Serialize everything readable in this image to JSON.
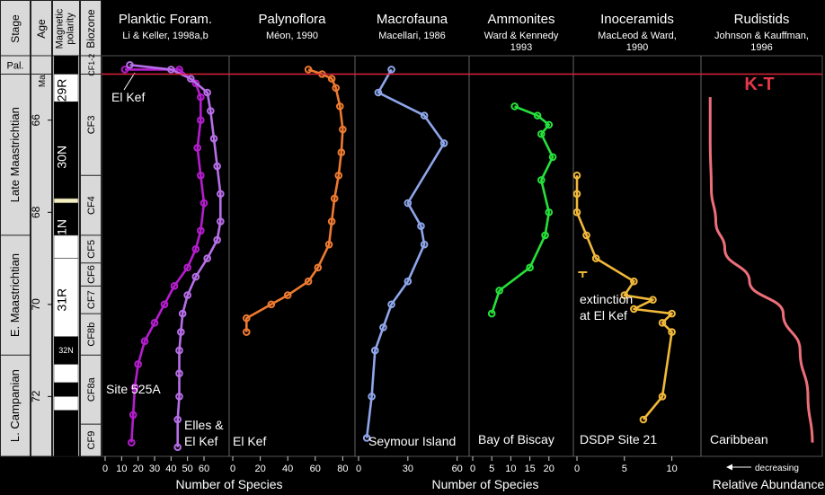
{
  "chart_data": {
    "type": "line",
    "y_axis": {
      "label": "Ma",
      "ticks": [
        66,
        68,
        70,
        72
      ],
      "range": [
        64.6,
        73.3
      ],
      "kt_boundary": 65.0
    },
    "left_columns": {
      "headers": {
        "stage": "Stage",
        "age": "Age",
        "polarity": "Magnetic polarity",
        "biozone": "Biozone"
      },
      "stages": [
        {
          "label": "Pal.",
          "from": 64.6,
          "to": 65.0
        },
        {
          "label": "Late Maastrichtian",
          "from": 65.0,
          "to": 68.5
        },
        {
          "label": "E. Maastrichtian",
          "from": 68.5,
          "to": 71.1
        },
        {
          "label": "L. Campanian",
          "from": 71.1,
          "to": 73.3
        }
      ],
      "polarity_labels": [
        {
          "label": "29R",
          "at": 65.35
        },
        {
          "label": "30N",
          "at": 66.8
        },
        {
          "label": "31N",
          "at": 68.4
        },
        {
          "label": "31R",
          "at": 69.9
        },
        {
          "label": "32N",
          "at": 71.0
        }
      ],
      "polarity_segments": [
        {
          "from": 64.6,
          "to": 65.0,
          "color": "#000000"
        },
        {
          "from": 65.0,
          "to": 65.6,
          "color": "#ffffff"
        },
        {
          "from": 65.6,
          "to": 67.7,
          "color": "#000000"
        },
        {
          "from": 67.7,
          "to": 67.8,
          "color": "#f3efc0"
        },
        {
          "from": 67.8,
          "to": 68.5,
          "color": "#000000"
        },
        {
          "from": 68.5,
          "to": 69.0,
          "color": "#ffffff"
        },
        {
          "from": 69.0,
          "to": 70.7,
          "color": "#ffffff"
        },
        {
          "from": 70.7,
          "to": 71.3,
          "color": "#000000"
        },
        {
          "from": 71.3,
          "to": 71.7,
          "color": "#ffffff"
        },
        {
          "from": 71.7,
          "to": 72.0,
          "color": "#000000"
        },
        {
          "from": 72.0,
          "to": 72.3,
          "color": "#ffffff"
        },
        {
          "from": 72.3,
          "to": 73.3,
          "color": "#000000"
        }
      ],
      "biozones": [
        {
          "label": "CF1-2",
          "from": 64.6,
          "to": 65.0
        },
        {
          "label": "CF3",
          "from": 65.0,
          "to": 67.2
        },
        {
          "label": "CF4",
          "from": 67.2,
          "to": 68.5
        },
        {
          "label": "CF5",
          "from": 68.5,
          "to": 69.1
        },
        {
          "label": "CF6",
          "from": 69.1,
          "to": 69.6
        },
        {
          "label": "CF7",
          "from": 69.6,
          "to": 70.2
        },
        {
          "label": "CF8b",
          "from": 70.2,
          "to": 71.1
        },
        {
          "label": "CF8a",
          "from": 71.1,
          "to": 72.6
        },
        {
          "label": "CF9",
          "from": 72.6,
          "to": 73.3
        }
      ]
    },
    "panels": [
      {
        "id": "planktic",
        "title": "Planktic Foram.",
        "source": "Li & Keller, 1998a,b",
        "axis_ticks": [
          0,
          10,
          20,
          30,
          40,
          50,
          60
        ],
        "x_range": [
          0,
          72
        ],
        "site_labels": [
          "El Kef",
          "Site 525A",
          "Elles &",
          "El Kef"
        ],
        "series": [
          {
            "name": "Site 525A",
            "color": "#b51dce",
            "points": [
              [
                12,
                64.9
              ],
              [
                45,
                64.9
              ],
              [
                55,
                65.2
              ],
              [
                58,
                65.5
              ],
              [
                58,
                66.0
              ],
              [
                56,
                66.6
              ],
              [
                58,
                67.2
              ],
              [
                60,
                67.8
              ],
              [
                58,
                68.4
              ],
              [
                55,
                68.8
              ],
              [
                50,
                69.2
              ],
              [
                42,
                69.6
              ],
              [
                36,
                70.0
              ],
              [
                30,
                70.4
              ],
              [
                24,
                70.8
              ],
              [
                20,
                71.3
              ],
              [
                18,
                71.8
              ],
              [
                17,
                72.4
              ],
              [
                16,
                73.0
              ]
            ]
          },
          {
            "name": "Elles & El Kef",
            "color": "#b86ee8",
            "points": [
              [
                15,
                64.8
              ],
              [
                40,
                64.9
              ],
              [
                52,
                65.1
              ],
              [
                62,
                65.4
              ],
              [
                64,
                65.8
              ],
              [
                66,
                66.4
              ],
              [
                68,
                67.0
              ],
              [
                70,
                67.6
              ],
              [
                70,
                68.2
              ],
              [
                68,
                68.6
              ],
              [
                62,
                69.0
              ],
              [
                55,
                69.4
              ],
              [
                50,
                69.8
              ],
              [
                47,
                70.2
              ],
              [
                46,
                70.6
              ],
              [
                45,
                71.0
              ],
              [
                45,
                71.5
              ],
              [
                45,
                72.0
              ],
              [
                44,
                72.5
              ],
              [
                44,
                73.1
              ]
            ]
          }
        ]
      },
      {
        "id": "palyno",
        "title": "Palynoflora",
        "source": "Méon, 1990",
        "axis_ticks": [
          0,
          20,
          40,
          60,
          80
        ],
        "x_range": [
          0,
          85
        ],
        "site_labels": [
          "El Kef"
        ],
        "series": [
          {
            "name": "El Kef",
            "color": "#ee7a30",
            "points": [
              [
                55,
                64.9
              ],
              [
                65,
                65.0
              ],
              [
                72,
                65.1
              ],
              [
                75,
                65.3
              ],
              [
                78,
                65.7
              ],
              [
                80,
                66.2
              ],
              [
                79,
                66.7
              ],
              [
                77,
                67.2
              ],
              [
                74,
                67.7
              ],
              [
                72,
                68.2
              ],
              [
                70,
                68.7
              ],
              [
                62,
                69.2
              ],
              [
                55,
                69.5
              ],
              [
                40,
                69.8
              ],
              [
                28,
                70.0
              ],
              [
                10,
                70.3
              ],
              [
                10,
                70.6
              ]
            ]
          }
        ]
      },
      {
        "id": "macro",
        "title": "Macrofauna",
        "source": "Macellari, 1986",
        "axis_ticks": [
          0,
          30,
          60
        ],
        "x_range": [
          0,
          64
        ],
        "site_labels": [
          "Seymour Island"
        ],
        "series": [
          {
            "name": "Seymour Island",
            "color": "#8ea6ea",
            "points": [
              [
                20,
                64.9
              ],
              [
                12,
                65.4
              ],
              [
                40,
                65.9
              ],
              [
                52,
                66.5
              ],
              [
                30,
                67.8
              ],
              [
                38,
                68.3
              ],
              [
                40,
                68.7
              ],
              [
                30,
                69.5
              ],
              [
                20,
                70.0
              ],
              [
                15,
                70.5
              ],
              [
                10,
                71.0
              ],
              [
                8,
                72.0
              ],
              [
                5,
                72.9
              ]
            ]
          }
        ]
      },
      {
        "id": "ammonites",
        "title": "Ammonites",
        "source": "Ward & Kennedy 1993",
        "axis_ticks": [
          0,
          5,
          10,
          15,
          20
        ],
        "x_range": [
          0,
          25
        ],
        "site_labels": [
          "Bay of Biscay"
        ],
        "series": [
          {
            "name": "Bay of Biscay",
            "color": "#27e13b",
            "points": [
              [
                11,
                65.7
              ],
              [
                17,
                65.9
              ],
              [
                20,
                66.1
              ],
              [
                18,
                66.3
              ],
              [
                21,
                66.8
              ],
              [
                18,
                67.3
              ],
              [
                20,
                68.0
              ],
              [
                19,
                68.5
              ],
              [
                15,
                69.2
              ],
              [
                7,
                69.7
              ],
              [
                5,
                70.2
              ]
            ]
          }
        ]
      },
      {
        "id": "inoceramids",
        "title": "Inoceramids",
        "source": "MacLeod & Ward, 1990",
        "axis_ticks": [
          0,
          5,
          10
        ],
        "x_range": [
          0,
          12.5
        ],
        "site_labels": [
          "extinction",
          "at El Kef",
          "DSDP Site 21"
        ],
        "series": [
          {
            "name": "DSDP Site 21",
            "color": "#f1b93a",
            "points": [
              [
                0,
                67.2
              ],
              [
                0,
                67.6
              ],
              [
                0,
                68.0
              ],
              [
                1,
                68.5
              ],
              [
                2,
                69.0
              ],
              [
                6,
                69.5
              ],
              [
                5,
                69.8
              ],
              [
                8,
                69.9
              ],
              [
                6,
                70.1
              ],
              [
                10,
                70.2
              ],
              [
                9,
                70.4
              ],
              [
                10,
                70.6
              ],
              [
                9,
                72.0
              ],
              [
                7,
                72.5
              ]
            ]
          }
        ],
        "marker_label": {
          "x": 0.6,
          "y": 69.3
        }
      },
      {
        "id": "rudistids",
        "title": "Rudistids",
        "source": "Johnson & Kauffman, 1996",
        "axis_ticks": [],
        "x_range": [
          0,
          100
        ],
        "site_labels": [
          "Caribbean"
        ],
        "series": [
          {
            "name": "Caribbean",
            "color": "#ee6f7a",
            "curve": true,
            "points": [
              [
                5,
                65.5
              ],
              [
                5,
                66.5
              ],
              [
                6,
                67.5
              ],
              [
                10,
                68.2
              ],
              [
                18,
                68.8
              ],
              [
                40,
                69.5
              ],
              [
                70,
                70.2
              ],
              [
                85,
                71.0
              ],
              [
                92,
                72.0
              ],
              [
                96,
                73.0
              ]
            ]
          }
        ]
      }
    ],
    "kt_label": "K-T",
    "x_axis_labels": {
      "species_left": "Number of Species",
      "species_right": "Number of Species",
      "abundance": "Relative Abundance",
      "decreasing": "decreasing"
    }
  }
}
